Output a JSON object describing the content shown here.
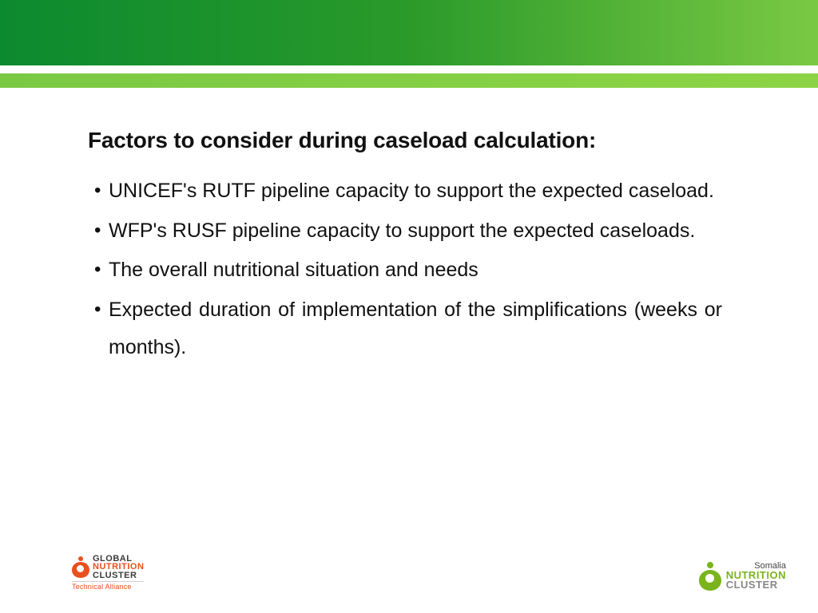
{
  "header": {
    "top_gradient_from": "#0c8a2f",
    "top_gradient_to": "#7ac943",
    "thin_bar_color": "#7ac943"
  },
  "content": {
    "title": "Factors to consider during caseload calculation:",
    "bullets": [
      "UNICEF's RUTF pipeline capacity to support the expected caseload.",
      "WFP's RUSF pipeline capacity to support the expected caseloads.",
      "The overall nutritional situation and needs",
      "Expected duration of implementation of the simplifications (weeks or months)."
    ]
  },
  "logos": {
    "left": {
      "line1": "GLOBAL",
      "line2": "NUTRITION",
      "line3": "CLUSTER",
      "subtitle": "Technical Alliance",
      "accent_color": "#e8501e"
    },
    "right": {
      "line1": "Somalia",
      "line2": "NUTRITION",
      "line3": "CLUSTER",
      "accent_color": "#7ab41d"
    }
  }
}
